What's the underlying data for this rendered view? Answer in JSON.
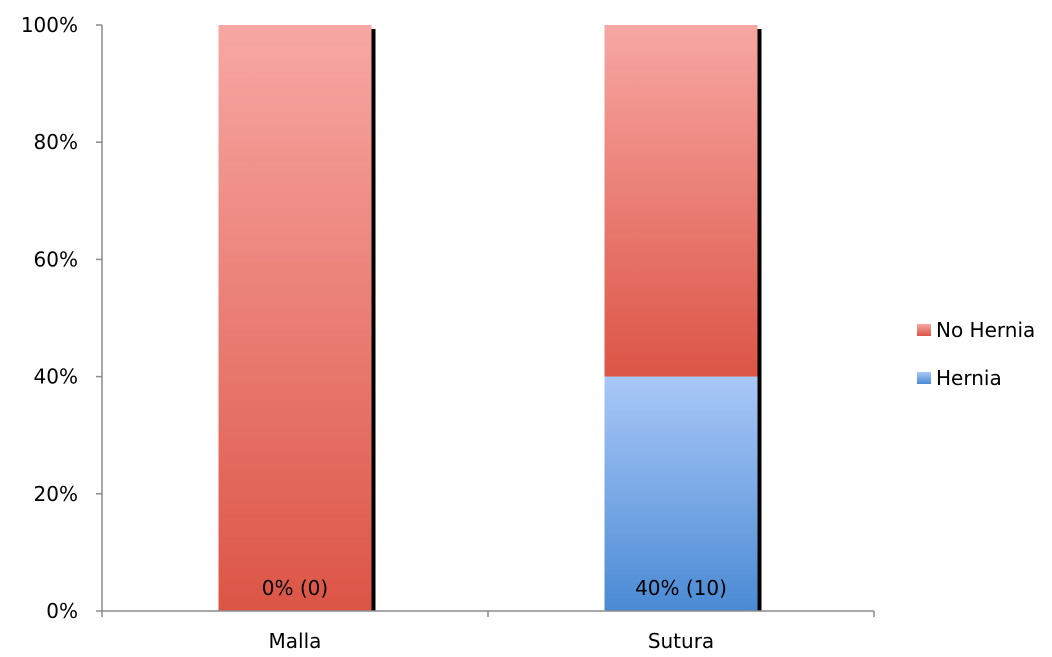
{
  "chart_data": {
    "type": "bar",
    "stacked": true,
    "percent_stacked": true,
    "categories": [
      "Malla",
      "Sutura"
    ],
    "series": [
      {
        "name": "Hernia",
        "values": [
          0,
          40
        ],
        "data_labels": [
          "0% (0)",
          "40% (10)"
        ]
      },
      {
        "name": "No Hernia",
        "values": [
          100,
          60
        ]
      }
    ],
    "ylim": [
      0,
      100
    ],
    "yticks": [
      0,
      20,
      40,
      60,
      80,
      100
    ],
    "ytick_labels": [
      "0%",
      "20%",
      "40%",
      "60%",
      "80%",
      "100%"
    ],
    "grid": false,
    "legend": {
      "position": "right",
      "entries": [
        "No Hernia",
        "Hernia"
      ]
    },
    "colors": {
      "No Hernia": {
        "top": "#f7a7a3",
        "bottom": "#dc5546"
      },
      "Hernia": {
        "top": "#a9c8f7",
        "bottom": "#4a8ad4"
      },
      "shadow": "#000000",
      "axis": "#8c8c8c"
    }
  }
}
